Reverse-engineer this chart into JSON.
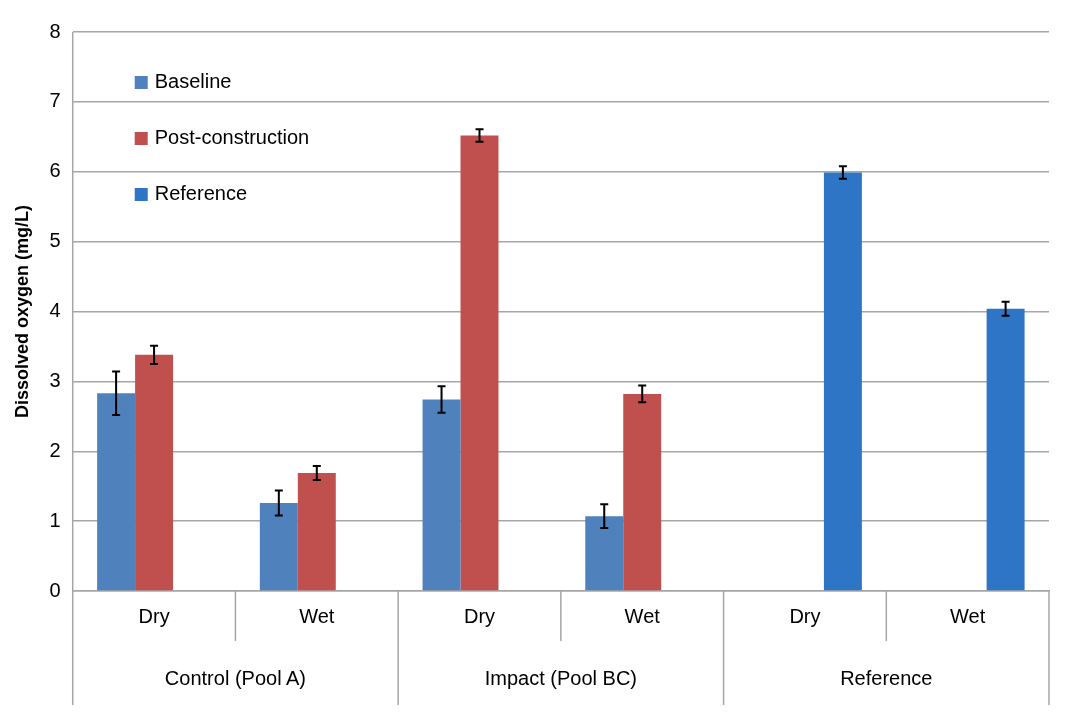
{
  "chart_data": {
    "type": "bar",
    "ylabel": "Dissolved oxygen (mg/L)",
    "categories": [
      "Dry",
      "Wet",
      "Dry",
      "Wet",
      "Dry",
      "Wet"
    ],
    "annotations": [
      "Control (Pool A)",
      "Impact (Pool BC)",
      "Reference"
    ],
    "series": [
      {
        "name": "Baseline",
        "color": "#4f81bd",
        "values": [
          2.83,
          1.26,
          2.74,
          1.07,
          null,
          null
        ],
        "errors": [
          0.31,
          0.18,
          0.19,
          0.17,
          null,
          null
        ]
      },
      {
        "name": "Post-construction",
        "color": "#c0504d",
        "values": [
          3.38,
          1.69,
          6.52,
          2.82,
          null,
          null
        ],
        "errors": [
          0.13,
          0.1,
          0.09,
          0.12,
          null,
          null
        ]
      },
      {
        "name": "Reference",
        "color": "#2e75c6",
        "values": [
          null,
          null,
          null,
          null,
          5.99,
          4.04
        ],
        "errors": [
          null,
          null,
          null,
          null,
          0.09,
          0.1
        ]
      }
    ],
    "ylim": [
      0,
      8
    ],
    "yticks": [
      0,
      1,
      2,
      3,
      4,
      5,
      6,
      7,
      8
    ],
    "grid": "y",
    "legend": "top left"
  }
}
